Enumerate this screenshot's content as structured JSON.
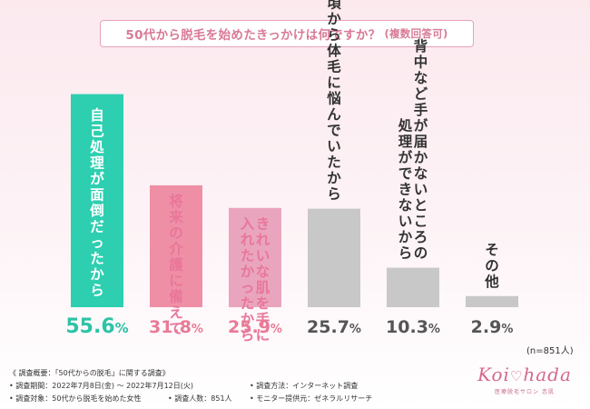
{
  "title": "50代から脱毛を始めたきっかけは何ですか？",
  "title_suffix": "(複数回答可)",
  "chart_data": {
    "type": "bar",
    "categories": [
      [
        "自己処理が面倒だったから"
      ],
      [
        "将来の介護に備えて"
      ],
      [
        "きれいな肌を手に",
        "入れたかったから"
      ],
      [
        "若い頃から体毛に悩んでいたから"
      ],
      [
        "背中など手が届かないところの",
        "処理ができないから"
      ],
      [
        "その他"
      ]
    ],
    "values": [
      55.6,
      31.8,
      25.9,
      25.7,
      10.3,
      2.9
    ],
    "value_labels": [
      "55.6",
      "31.8",
      "25.9",
      "25.7",
      "10.3",
      "2.9"
    ],
    "unit": "%",
    "ylim": [
      0,
      60
    ],
    "colors": [
      "#2dcfb0",
      "#ef8fa6",
      "#eaa5be",
      "#c8c8c8",
      "#c8c8c8",
      "#c8c8c8"
    ],
    "label_colors": [
      "#ffffff",
      "#e8769a",
      "#e8769a",
      "#333333",
      "#333333",
      "#333333"
    ],
    "value_colors": [
      "#2dc3a6",
      "#e97a97",
      "#e97a97",
      "#555555",
      "#555555",
      "#555555"
    ],
    "grid": false
  },
  "n_note": "(n=851人)",
  "footer": {
    "overview": "《 調査概要：「50代からの脱毛」に関する調査》",
    "period": "• 調査期間：2022年7月8日(金) ～ 2022年7月12日(火)",
    "method": "• 調査方法：インターネット調査",
    "target": "• 調査対象：50代から脱毛を始めた女性",
    "count": "• 調査人数：851人",
    "provider": "• モニター提供元：ゼネラルリサーチ"
  },
  "brand": {
    "logo_left": "Koi",
    "logo_right": "hada",
    "tagline": "医療脱毛サロン 恋肌"
  }
}
